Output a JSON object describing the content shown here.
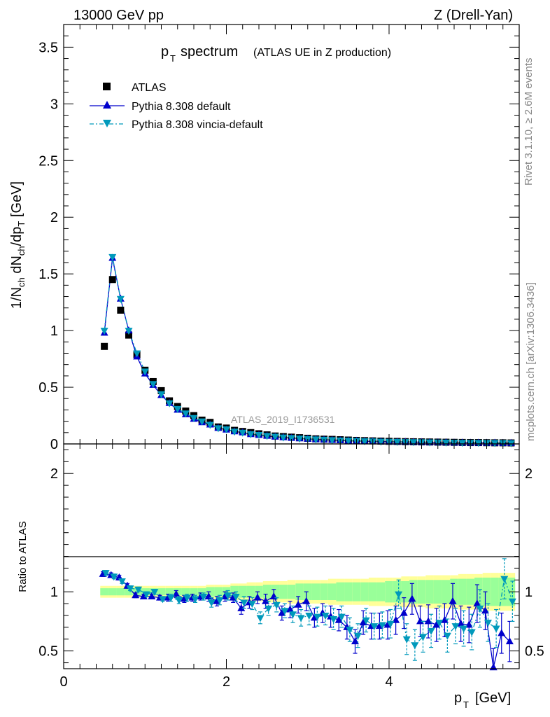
{
  "header": {
    "left": "13000 GeV pp",
    "right": "Z (Drell-Yan)"
  },
  "side_labels": {
    "rivet": "Rivet 3.1.10, ≥ 2.6M events",
    "mcplots": "mcplots.cern.ch [arXiv:1306.3436]"
  },
  "chart_data": [
    {
      "type": "scatter",
      "title_main": "p",
      "title_sub": "T",
      "title_word": "spectrum",
      "title_extra": "(ATLAS UE in Z production)",
      "ylabel": "1/N_ch dN_ch/dp_T [GeV]",
      "watermark": "ATLAS_2019_I1736531",
      "xlim": [
        0,
        5.6
      ],
      "ylim": [
        0,
        3.7
      ],
      "yticks": [
        0,
        0.5,
        1,
        1.5,
        2,
        2.5,
        3,
        3.5
      ],
      "ytick_labels": [
        "0",
        "0.5",
        "1",
        "1.5",
        "2",
        "2.5",
        "3",
        "3.5"
      ],
      "legend_position": "top-left",
      "x": [
        0.5,
        0.6,
        0.7,
        0.8,
        0.9,
        1.0,
        1.1,
        1.2,
        1.3,
        1.4,
        1.5,
        1.6,
        1.7,
        1.8,
        1.9,
        2.0,
        2.1,
        2.2,
        2.3,
        2.4,
        2.5,
        2.6,
        2.7,
        2.8,
        2.9,
        3.0,
        3.1,
        3.2,
        3.3,
        3.4,
        3.5,
        3.6,
        3.7,
        3.8,
        3.9,
        4.0,
        4.1,
        4.2,
        4.3,
        4.4,
        4.5,
        4.6,
        4.7,
        4.8,
        4.9,
        5.0,
        5.1,
        5.2,
        5.3,
        5.4,
        5.5
      ],
      "series": [
        {
          "name": "ATLAS",
          "color": "#000000",
          "marker": "square",
          "values": [
            0.86,
            1.45,
            1.18,
            0.96,
            0.79,
            0.65,
            0.55,
            0.47,
            0.38,
            0.33,
            0.29,
            0.25,
            0.21,
            0.19,
            0.15,
            0.14,
            0.12,
            0.11,
            0.1,
            0.09,
            0.08,
            0.07,
            0.065,
            0.06,
            0.055,
            0.05,
            0.045,
            0.042,
            0.04,
            0.037,
            0.034,
            0.031,
            0.029,
            0.027,
            0.025,
            0.023,
            0.022,
            0.02,
            0.019,
            0.018,
            0.017,
            0.016,
            0.015,
            0.014,
            0.013,
            0.012,
            0.012,
            0.011,
            0.01,
            0.01,
            0.009
          ]
        },
        {
          "name": "Pythia 8.308 default",
          "color": "#0000cc",
          "marker": "triangle-up",
          "values": [
            0.98,
            1.64,
            1.28,
            1.0,
            0.77,
            0.62,
            0.52,
            0.43,
            0.36,
            0.3,
            0.26,
            0.22,
            0.19,
            0.17,
            0.14,
            0.125,
            0.11,
            0.1,
            0.085,
            0.078,
            0.07,
            0.063,
            0.057,
            0.052,
            0.048,
            0.044,
            0.04,
            0.037,
            0.034,
            0.031,
            0.028,
            0.026,
            0.024,
            0.022,
            0.021,
            0.019,
            0.018,
            0.017,
            0.016,
            0.015,
            0.014,
            0.013,
            0.012,
            0.011,
            0.011,
            0.01,
            0.01,
            0.009,
            0.009,
            0.008,
            0.008
          ]
        },
        {
          "name": "Pythia 8.308 vincia-default",
          "color": "#0099bb",
          "marker": "triangle-down",
          "values": [
            1.0,
            1.65,
            1.28,
            1.0,
            0.8,
            0.64,
            0.53,
            0.44,
            0.36,
            0.31,
            0.27,
            0.23,
            0.2,
            0.17,
            0.14,
            0.13,
            0.11,
            0.1,
            0.087,
            0.08,
            0.072,
            0.065,
            0.058,
            0.053,
            0.049,
            0.045,
            0.041,
            0.038,
            0.035,
            0.032,
            0.029,
            0.027,
            0.025,
            0.023,
            0.021,
            0.02,
            0.019,
            0.018,
            0.017,
            0.016,
            0.015,
            0.014,
            0.013,
            0.012,
            0.011,
            0.011,
            0.01,
            0.01,
            0.009,
            0.009,
            0.008
          ]
        }
      ]
    },
    {
      "type": "scatter",
      "ylabel": "Ratio to ATLAS",
      "xlabel_main": "p",
      "xlabel_sub": "T",
      "xlabel_unit": "[GeV]",
      "xlim": [
        0,
        5.6
      ],
      "ylim": [
        0.35,
        2.25
      ],
      "xticks": [
        0,
        2,
        4
      ],
      "xtick_labels": [
        "0",
        "2",
        "4"
      ],
      "yticks": [
        0.5,
        1,
        2
      ],
      "ytick_labels": [
        "0.5",
        "1",
        "2"
      ],
      "x": [
        0.5,
        0.6,
        0.7,
        0.8,
        0.9,
        1.0,
        1.1,
        1.2,
        1.3,
        1.4,
        1.5,
        1.6,
        1.7,
        1.8,
        1.9,
        2.0,
        2.1,
        2.2,
        2.3,
        2.4,
        2.5,
        2.6,
        2.7,
        2.8,
        2.9,
        3.0,
        3.1,
        3.2,
        3.3,
        3.4,
        3.5,
        3.6,
        3.7,
        3.8,
        3.9,
        4.0,
        4.1,
        4.2,
        4.3,
        4.4,
        4.5,
        4.6,
        4.7,
        4.8,
        4.9,
        5.0,
        5.1,
        5.2,
        5.3,
        5.4,
        5.5
      ],
      "band_inner": [
        0.03,
        0.03,
        0.03,
        0.03,
        0.03,
        0.03,
        0.03,
        0.03,
        0.03,
        0.03,
        0.03,
        0.03,
        0.03,
        0.04,
        0.04,
        0.04,
        0.05,
        0.05,
        0.05,
        0.05,
        0.06,
        0.06,
        0.06,
        0.06,
        0.07,
        0.07,
        0.07,
        0.07,
        0.07,
        0.08,
        0.08,
        0.08,
        0.08,
        0.08,
        0.08,
        0.09,
        0.09,
        0.09,
        0.1,
        0.1,
        0.1,
        0.1,
        0.1,
        0.11,
        0.11,
        0.11,
        0.12,
        0.12,
        0.12,
        0.12,
        0.12
      ],
      "band_outer": [
        0.05,
        0.05,
        0.05,
        0.05,
        0.05,
        0.05,
        0.05,
        0.05,
        0.05,
        0.05,
        0.05,
        0.05,
        0.05,
        0.06,
        0.06,
        0.06,
        0.07,
        0.07,
        0.08,
        0.08,
        0.09,
        0.09,
        0.09,
        0.1,
        0.1,
        0.1,
        0.1,
        0.1,
        0.11,
        0.11,
        0.11,
        0.11,
        0.11,
        0.12,
        0.12,
        0.12,
        0.12,
        0.13,
        0.13,
        0.13,
        0.14,
        0.14,
        0.14,
        0.14,
        0.15,
        0.15,
        0.15,
        0.16,
        0.16,
        0.16,
        0.16
      ],
      "series": [
        {
          "name": "Pythia 8.308 default",
          "color": "#0000cc",
          "marker": "triangle-up",
          "values": [
            1.15,
            1.14,
            1.12,
            1.05,
            0.97,
            0.96,
            0.96,
            0.95,
            0.95,
            0.98,
            0.94,
            0.95,
            0.96,
            0.96,
            0.92,
            0.96,
            0.95,
            0.86,
            0.91,
            0.95,
            0.92,
            0.96,
            0.82,
            0.85,
            0.89,
            0.92,
            0.78,
            0.82,
            0.79,
            0.76,
            0.7,
            0.58,
            0.74,
            0.71,
            0.71,
            0.72,
            0.76,
            0.82,
            0.94,
            0.75,
            0.75,
            0.72,
            0.76,
            0.92,
            0.73,
            0.72,
            0.9,
            0.84,
            0.36,
            0.65,
            0.58
          ],
          "errors": [
            0.02,
            0.02,
            0.02,
            0.02,
            0.02,
            0.02,
            0.02,
            0.02,
            0.03,
            0.03,
            0.03,
            0.03,
            0.03,
            0.04,
            0.04,
            0.04,
            0.04,
            0.05,
            0.05,
            0.05,
            0.06,
            0.06,
            0.06,
            0.07,
            0.07,
            0.08,
            0.08,
            0.08,
            0.09,
            0.09,
            0.1,
            0.1,
            0.1,
            0.11,
            0.11,
            0.12,
            0.12,
            0.13,
            0.13,
            0.13,
            0.14,
            0.14,
            0.14,
            0.15,
            0.15,
            0.15,
            0.16,
            0.16,
            0.16,
            0.17,
            0.17
          ]
        },
        {
          "name": "Pythia 8.308 vincia-default",
          "color": "#0099bb",
          "marker": "triangle-down",
          "values": [
            1.16,
            1.13,
            1.09,
            1.03,
            1.02,
            0.98,
            1.0,
            0.94,
            0.95,
            0.93,
            0.95,
            0.94,
            0.96,
            0.91,
            0.93,
            0.97,
            0.96,
            0.91,
            0.9,
            0.78,
            0.86,
            0.89,
            0.84,
            0.81,
            0.78,
            0.8,
            0.79,
            0.8,
            0.77,
            0.79,
            0.68,
            0.63,
            0.76,
            0.71,
            0.72,
            0.73,
            0.98,
            0.6,
            0.55,
            0.62,
            0.67,
            0.74,
            0.63,
            0.71,
            0.69,
            0.66,
            0.86,
            0.74,
            0.69,
            1.11,
            0.92
          ],
          "errors": [
            0.02,
            0.02,
            0.02,
            0.02,
            0.02,
            0.02,
            0.02,
            0.02,
            0.03,
            0.03,
            0.03,
            0.03,
            0.03,
            0.04,
            0.04,
            0.04,
            0.04,
            0.05,
            0.05,
            0.05,
            0.06,
            0.06,
            0.06,
            0.07,
            0.07,
            0.08,
            0.08,
            0.08,
            0.09,
            0.09,
            0.1,
            0.1,
            0.1,
            0.11,
            0.11,
            0.12,
            0.12,
            0.13,
            0.13,
            0.13,
            0.14,
            0.14,
            0.14,
            0.15,
            0.15,
            0.15,
            0.16,
            0.16,
            0.16,
            0.17,
            0.17
          ]
        }
      ]
    }
  ],
  "colors": {
    "band_inner": "#99ff99",
    "band_outer": "#ffff99",
    "frame": "#000000",
    "watermark": "#999999",
    "side_label": "#888888"
  }
}
